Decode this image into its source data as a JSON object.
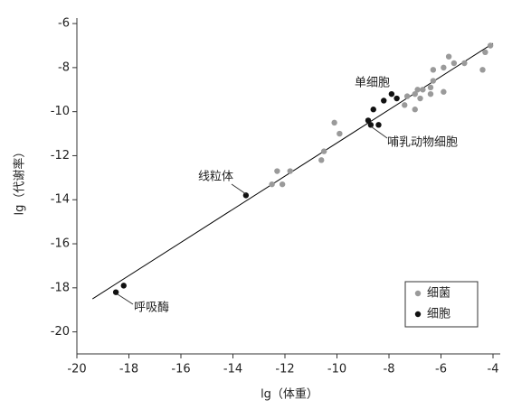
{
  "chart_data": {
    "type": "scatter",
    "xlabel": "lg（体重）",
    "ylabel": "lg（代谢率）",
    "xlim": [
      -20,
      -4
    ],
    "xticks": [
      -20,
      -18,
      -16,
      -14,
      -12,
      -10,
      -8,
      -6,
      -4
    ],
    "ylim": [
      -21,
      -5.75
    ],
    "yticks": [
      -20,
      -18,
      -16,
      -14,
      -12,
      -10,
      -8,
      -6
    ],
    "legend": "lower right",
    "fit_line": {
      "x": [
        -19.4,
        -4.0
      ],
      "y": [
        -18.5,
        -6.9
      ],
      "color": "#000000"
    },
    "annotations": [
      "单细胞",
      "哺乳动物细胞",
      "线粒体",
      "呼吸酶"
    ],
    "series": [
      {
        "name": "细菌",
        "color": "#9a9a9a",
        "x": [
          -4.1,
          -4.3,
          -4.4,
          -5.1,
          -5.5,
          -5.7,
          -5.9,
          -6.3,
          -6.3,
          -6.4,
          -5.9,
          -6.7,
          -6.9,
          -7.0,
          -6.8,
          -6.4,
          -7.3,
          -7.4,
          -7.0,
          -10.1,
          -9.9,
          -10.5,
          -10.6,
          -12.3,
          -11.8,
          -12.5,
          -12.1
        ],
        "values": [
          -7.0,
          -7.3,
          -8.1,
          -7.8,
          -7.8,
          -7.5,
          -8.0,
          -8.6,
          -8.1,
          -8.9,
          -9.1,
          -9.0,
          -9.0,
          -9.2,
          -9.4,
          -9.2,
          -9.3,
          -9.7,
          -9.9,
          -10.5,
          -11.0,
          -11.8,
          -12.2,
          -12.7,
          -12.7,
          -13.3,
          -13.3
        ]
      },
      {
        "name": "细胞",
        "color": "#111111",
        "x": [
          -8.2,
          -7.9,
          -7.7,
          -8.6,
          -8.8,
          -8.7,
          -8.4,
          -13.5,
          -18.5,
          -18.2
        ],
        "values": [
          -9.5,
          -9.2,
          -9.4,
          -9.9,
          -10.4,
          -10.6,
          -10.6,
          -13.8,
          -18.2,
          -17.9
        ]
      }
    ]
  }
}
